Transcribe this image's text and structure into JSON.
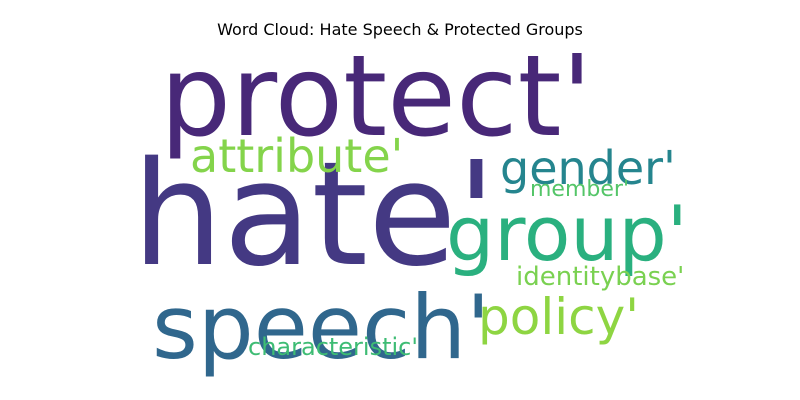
{
  "title": "Word Cloud: Hate Speech & Protected Groups",
  "words": [
    {
      "text": "protect'",
      "color": "#482878"
    },
    {
      "text": "hate'",
      "color": "#443983"
    },
    {
      "text": "speech'",
      "color": "#30678d"
    },
    {
      "text": "group'",
      "color": "#2ab07f"
    },
    {
      "text": "gender'",
      "color": "#25858e"
    },
    {
      "text": "attribute'",
      "color": "#84d44b"
    },
    {
      "text": "policy'",
      "color": "#8ed542"
    },
    {
      "text": "member'",
      "color": "#54c568"
    },
    {
      "text": "identitybase'",
      "color": "#7ad151"
    },
    {
      "text": "characteristic'",
      "color": "#3ebc74"
    }
  ]
}
